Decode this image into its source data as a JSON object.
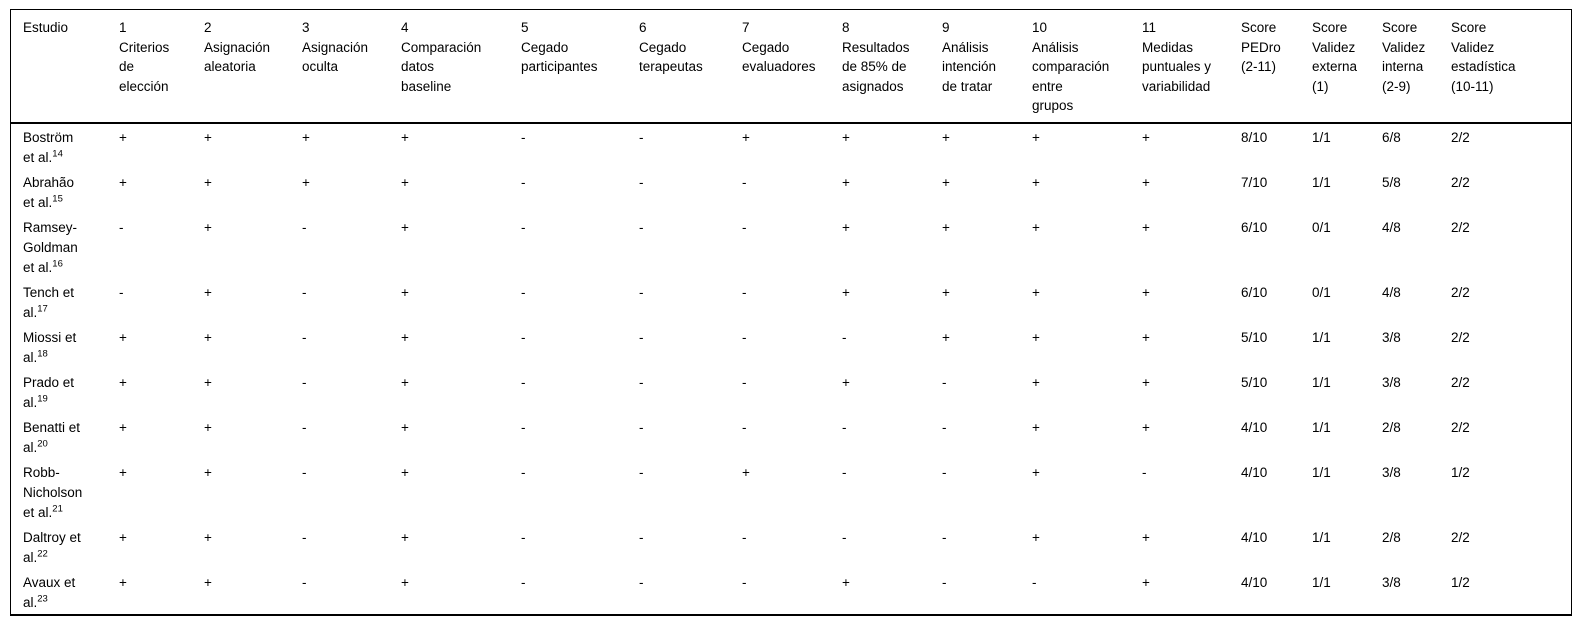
{
  "page": {
    "background": "#ffffff",
    "text_color": "#000000",
    "rule_color": "#000000"
  },
  "table": {
    "semantic": "pedro-scale-methodological-quality-table",
    "columns": [
      {
        "key": "estudio",
        "num": "",
        "label": "Estudio"
      },
      {
        "key": "criterio-1",
        "num": "1",
        "label": "Criterios\nde\nelección"
      },
      {
        "key": "criterio-2",
        "num": "2",
        "label": "Asignación\naleatoria"
      },
      {
        "key": "criterio-3",
        "num": "3",
        "label": "Asignación\noculta"
      },
      {
        "key": "criterio-4",
        "num": "4",
        "label": "Comparación\ndatos\nbaseline"
      },
      {
        "key": "criterio-5",
        "num": "5",
        "label": "Cegado\nparticipantes"
      },
      {
        "key": "criterio-6",
        "num": "6",
        "label": "Cegado\nterapeutas"
      },
      {
        "key": "criterio-7",
        "num": "7",
        "label": "Cegado\nevaluadores"
      },
      {
        "key": "criterio-8",
        "num": "8",
        "label": "Resultados\nde 85% de\nasignados"
      },
      {
        "key": "criterio-9",
        "num": "9",
        "label": "Análisis\nintención\nde tratar"
      },
      {
        "key": "criterio-10",
        "num": "10",
        "label": "Análisis\ncomparación\nentre\ngrupos"
      },
      {
        "key": "criterio-11",
        "num": "11",
        "label": "Medidas\npuntuales y\nvariabilidad"
      },
      {
        "key": "score-pedro",
        "num": "",
        "label": "Score\nPEDro\n(2-11)"
      },
      {
        "key": "score-validez-externa",
        "num": "",
        "label": "Score\nValidez\nexterna\n(1)"
      },
      {
        "key": "score-validez-interna",
        "num": "",
        "label": "Score\nValidez\ninterna\n(2-9)"
      },
      {
        "key": "score-validez-estadistica",
        "num": "",
        "label": "Score\nValidez\nestadística\n(10-11)"
      }
    ],
    "rows": [
      {
        "study": "Boström\net al.",
        "ref": "14",
        "items": [
          "+",
          "+",
          "+",
          "+",
          "-",
          "-",
          "+",
          "+",
          "+",
          "+",
          "+"
        ],
        "scores": [
          "8/10",
          "1/1",
          "6/8",
          "2/2"
        ]
      },
      {
        "study": "Abrahão\net al.",
        "ref": "15",
        "items": [
          "+",
          "+",
          "+",
          "+",
          "-",
          "-",
          "-",
          "+",
          "+",
          "+",
          "+"
        ],
        "scores": [
          "7/10",
          "1/1",
          "5/8",
          "2/2"
        ]
      },
      {
        "study": "Ramsey-\nGoldman\net al.",
        "ref": "16",
        "items": [
          "-",
          "+",
          "-",
          "+",
          "-",
          "-",
          "-",
          "+",
          "+",
          "+",
          "+"
        ],
        "scores": [
          "6/10",
          "0/1",
          "4/8",
          "2/2"
        ]
      },
      {
        "study": "Tench et\nal.",
        "ref": "17",
        "items": [
          "-",
          "+",
          "-",
          "+",
          "-",
          "-",
          "-",
          "+",
          "+",
          "+",
          "+"
        ],
        "scores": [
          "6/10",
          "0/1",
          "4/8",
          "2/2"
        ]
      },
      {
        "study": "Miossi et\nal.",
        "ref": "18",
        "items": [
          "+",
          "+",
          "-",
          "+",
          "-",
          "-",
          "-",
          "-",
          "+",
          "+",
          "+"
        ],
        "scores": [
          "5/10",
          "1/1",
          "3/8",
          "2/2"
        ]
      },
      {
        "study": "Prado et\nal.",
        "ref": "19",
        "items": [
          "+",
          "+",
          "-",
          "+",
          "-",
          "-",
          "-",
          "+",
          "-",
          "+",
          "+"
        ],
        "scores": [
          "5/10",
          "1/1",
          "3/8",
          "2/2"
        ]
      },
      {
        "study": "Benatti et\nal.",
        "ref": "20",
        "items": [
          "+",
          "+",
          "-",
          "+",
          "-",
          "-",
          "-",
          "-",
          "-",
          "+",
          "+"
        ],
        "scores": [
          "4/10",
          "1/1",
          "2/8",
          "2/2"
        ]
      },
      {
        "study": "Robb-\nNicholson\net al.",
        "ref": "21",
        "items": [
          "+",
          "+",
          "-",
          "+",
          "-",
          "-",
          "+",
          "-",
          "-",
          "+",
          "-"
        ],
        "scores": [
          "4/10",
          "1/1",
          "3/8",
          "1/2"
        ]
      },
      {
        "study": "Daltroy et\nal.",
        "ref": "22",
        "items": [
          "+",
          "+",
          "-",
          "+",
          "-",
          "-",
          "-",
          "-",
          "-",
          "+",
          "+"
        ],
        "scores": [
          "4/10",
          "1/1",
          "2/8",
          "2/2"
        ]
      },
      {
        "study": "Avaux et\nal.",
        "ref": "23",
        "items": [
          "+",
          "+",
          "-",
          "+",
          "-",
          "-",
          "-",
          "+",
          "-",
          "-",
          "+"
        ],
        "scores": [
          "4/10",
          "1/1",
          "3/8",
          "1/2"
        ]
      }
    ]
  }
}
